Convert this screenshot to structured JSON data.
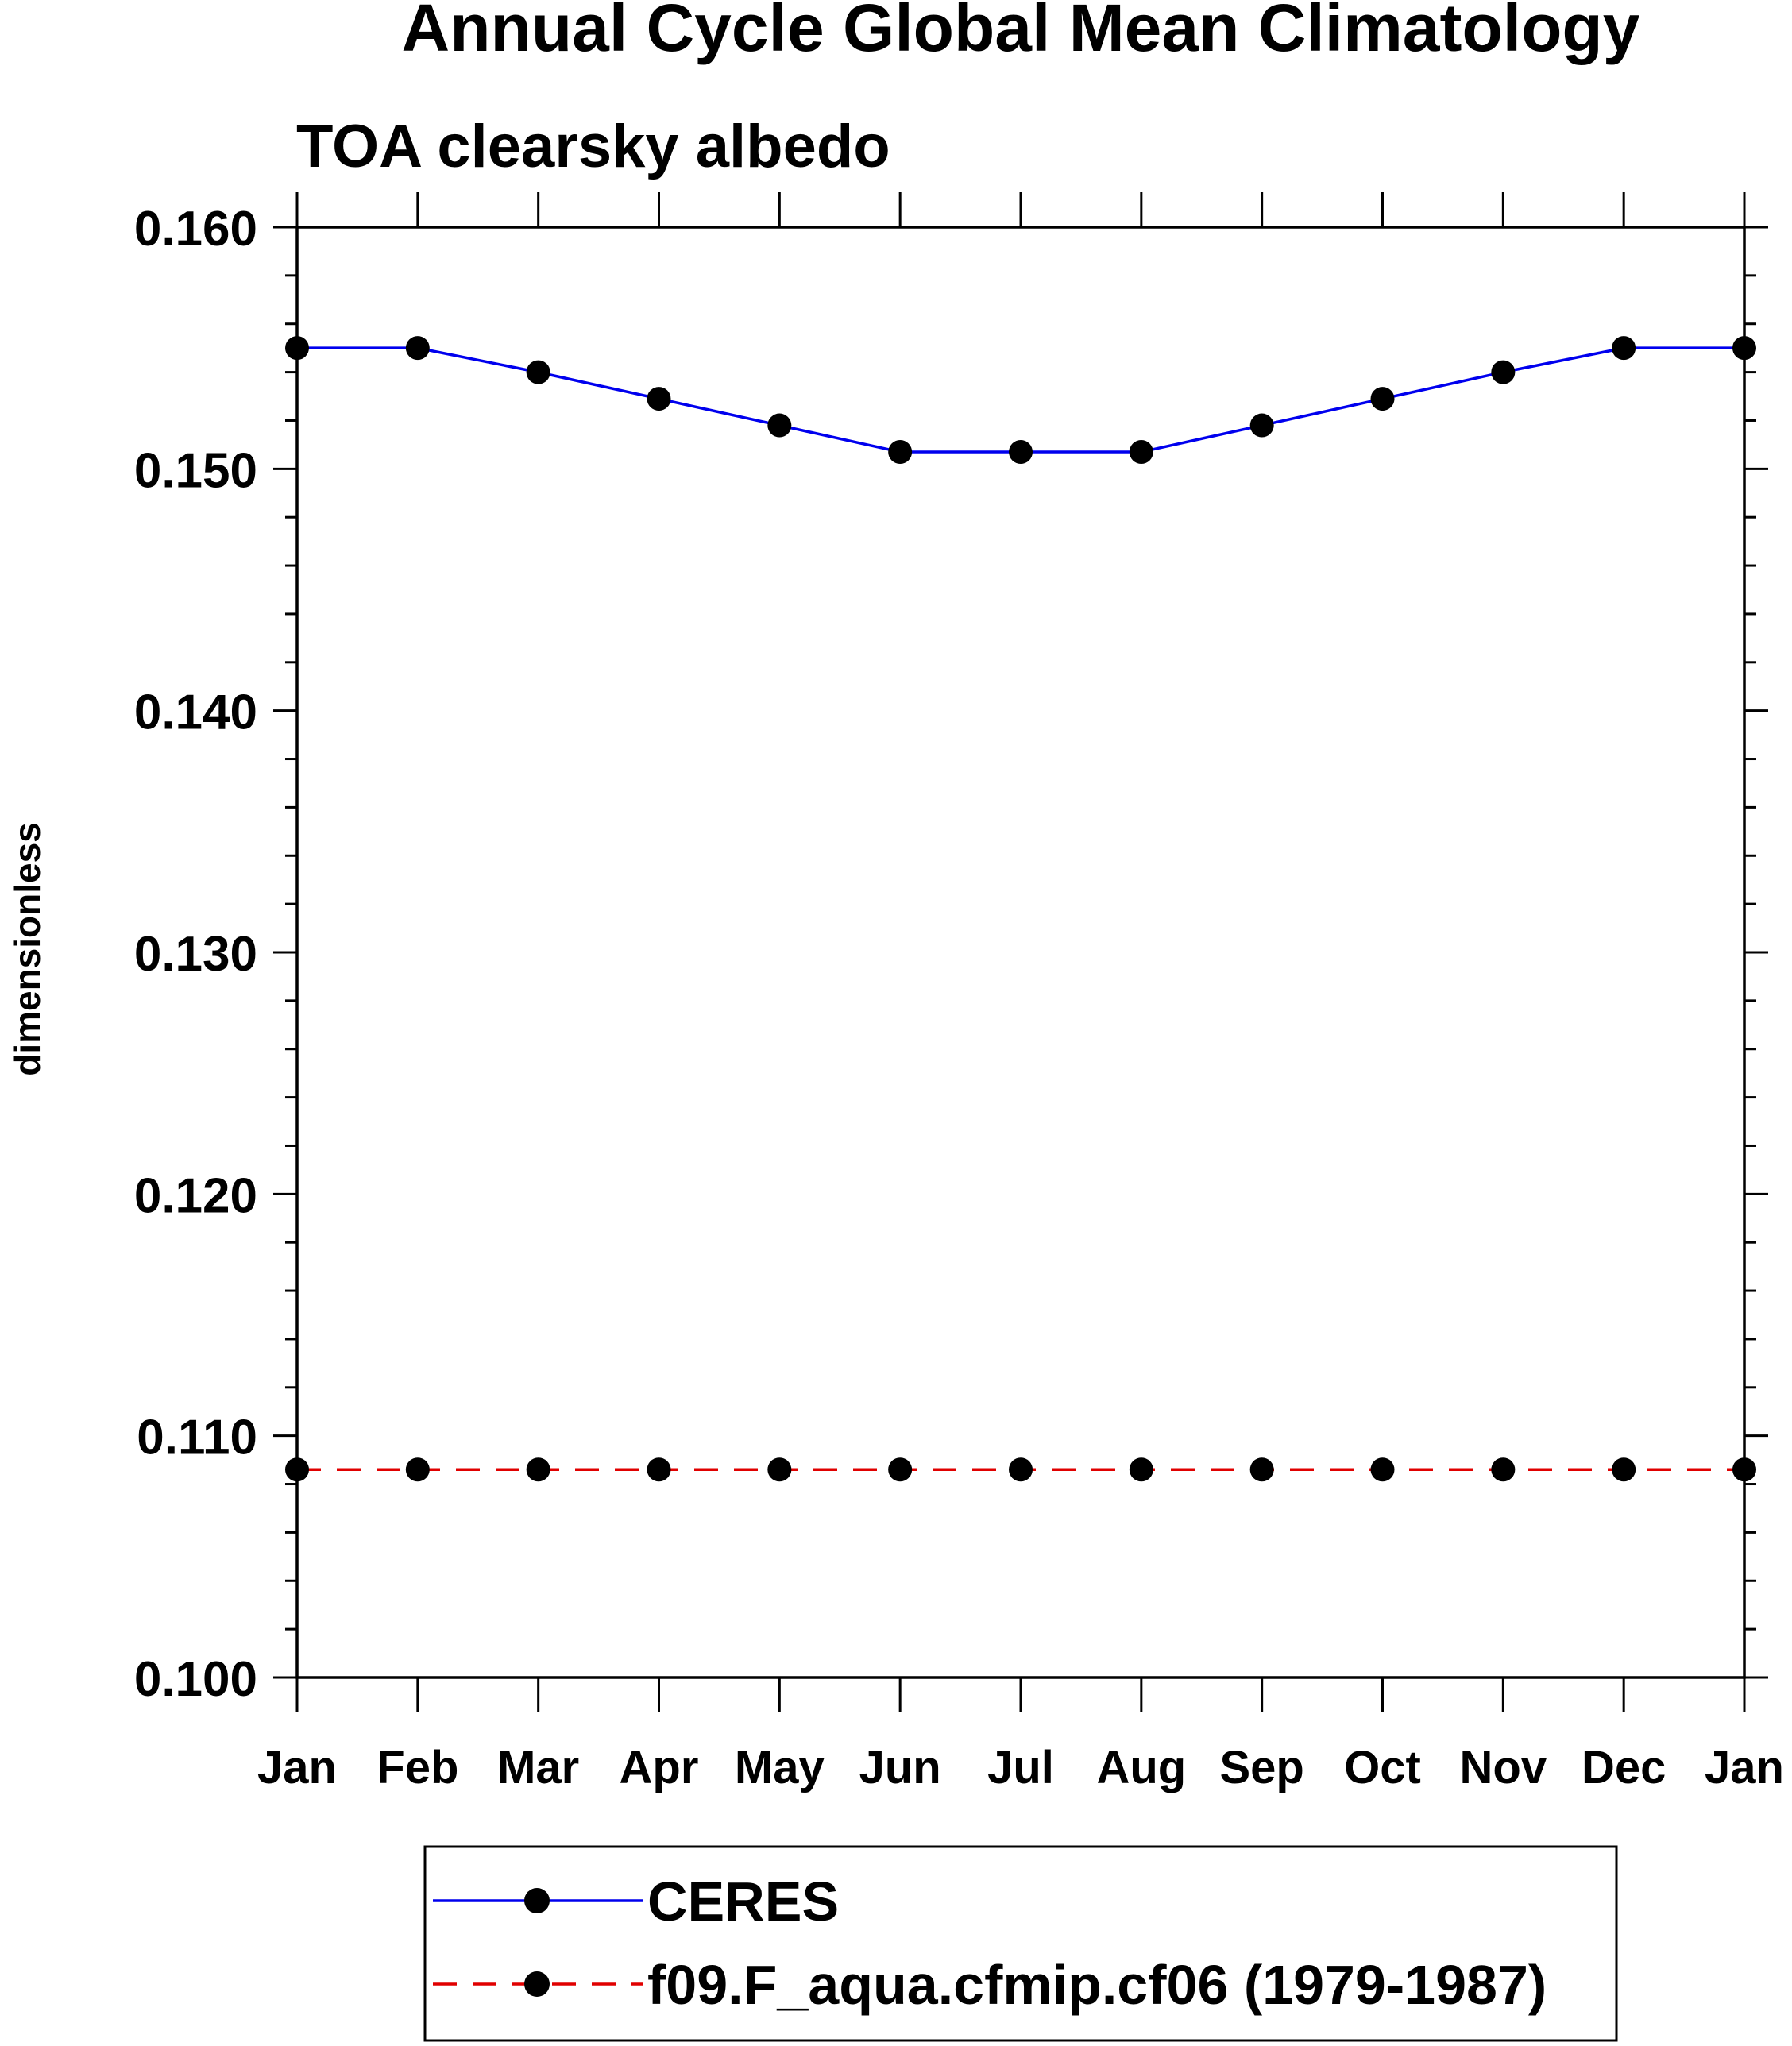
{
  "chart_data": {
    "type": "line",
    "title": "Annual Cycle Global Mean Climatology",
    "subtitle": "TOA clearsky albedo",
    "xlabel": "",
    "ylabel": "dimensionless",
    "categories": [
      "Jan",
      "Feb",
      "Mar",
      "Apr",
      "May",
      "Jun",
      "Jul",
      "Aug",
      "Sep",
      "Oct",
      "Nov",
      "Dec",
      "Jan"
    ],
    "ylim": [
      0.1,
      0.16
    ],
    "yticks": [
      "0.100",
      "0.110",
      "0.120",
      "0.130",
      "0.140",
      "0.150",
      "0.160"
    ],
    "grid": false,
    "legend_position": "bottom-center",
    "series": [
      {
        "name": "CERES",
        "color": "#0000ee",
        "line_style": "solid",
        "marker": "filled-circle",
        "values": [
          0.155,
          0.155,
          0.154,
          0.1529,
          0.1518,
          0.1507,
          0.1507,
          0.1507,
          0.1518,
          0.1529,
          0.154,
          0.155,
          0.155
        ]
      },
      {
        "name": "f09.F_aqua.cfmip.cf06 (1979-1987)",
        "color": "#e00000",
        "line_style": "dashed",
        "marker": "filled-circle",
        "values": [
          0.1086,
          0.1086,
          0.1086,
          0.1086,
          0.1086,
          0.1086,
          0.1086,
          0.1086,
          0.1086,
          0.1086,
          0.1086,
          0.1086,
          0.1086
        ]
      }
    ]
  }
}
